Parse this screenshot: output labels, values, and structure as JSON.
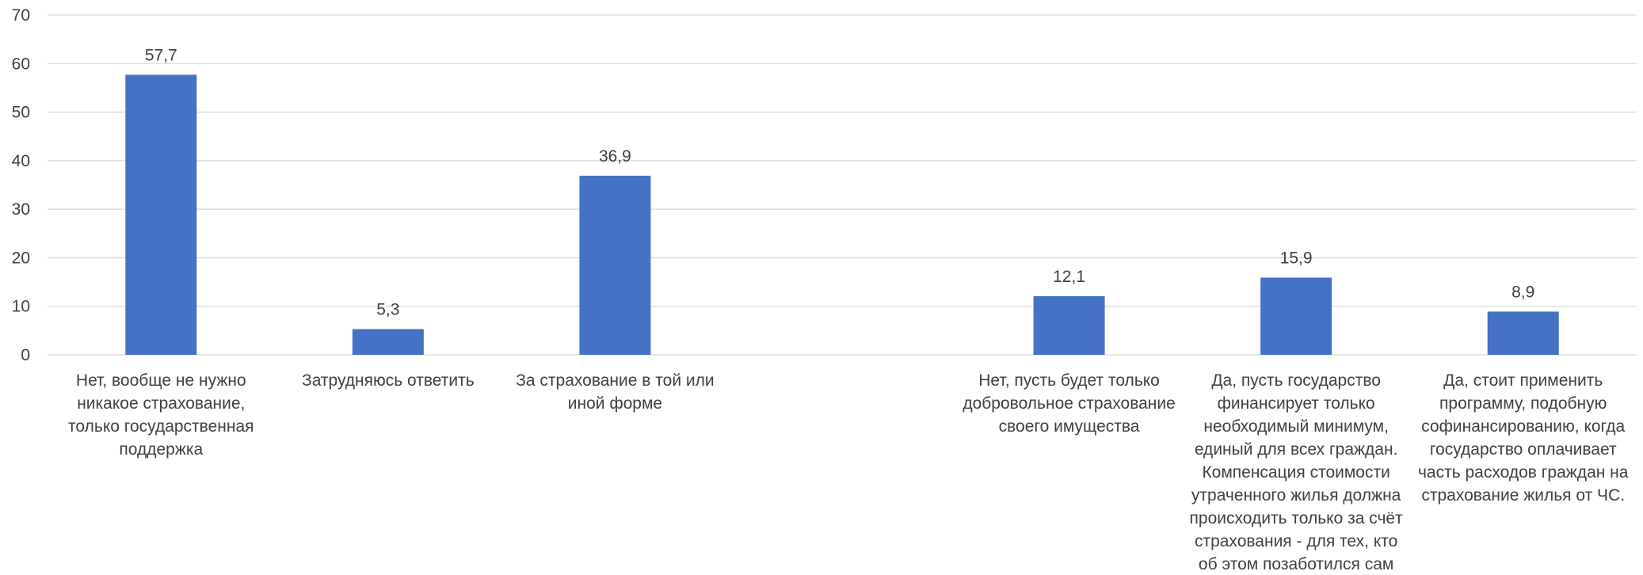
{
  "chart_data": {
    "type": "bar",
    "title": "",
    "xlabel": "",
    "ylabel": "",
    "ylim": [
      0,
      70
    ],
    "yticks": [
      0,
      10,
      20,
      30,
      40,
      50,
      60,
      70
    ],
    "grid": true,
    "legend": "none",
    "bar_color": "#4472C4",
    "grid_color": "#D9D9D9",
    "categories": [
      [
        "Нет, вообще не нужно",
        "никакое страхование,",
        "только государственная",
        "поддержка"
      ],
      [
        "Затрудняюсь ответить"
      ],
      [
        "За страхование в той или",
        "иной форме"
      ],
      [],
      [
        "Нет, пусть будет только",
        "добровольное страхование",
        "своего имущества"
      ],
      [
        "Да, пусть государство",
        "финансирует только",
        "необходимый минимум,",
        "единый для всех граждан.",
        "Компенсация стоимости",
        "утраченного жилья должна",
        "происходить только за счёт",
        "страхования - для тех, кто",
        "об этом позаботился сам"
      ],
      [
        "Да, стоит применить",
        "программу, подобную",
        "софинансированию, когда",
        "государство оплачивает",
        "часть расходов граждан на",
        "страхование жилья от ЧС."
      ]
    ],
    "values": [
      57.7,
      5.3,
      36.9,
      null,
      12.1,
      15.9,
      8.9
    ],
    "value_labels": [
      "57,7",
      "5,3",
      "36,9",
      "",
      "12,1",
      "15,9",
      "8,9"
    ]
  }
}
